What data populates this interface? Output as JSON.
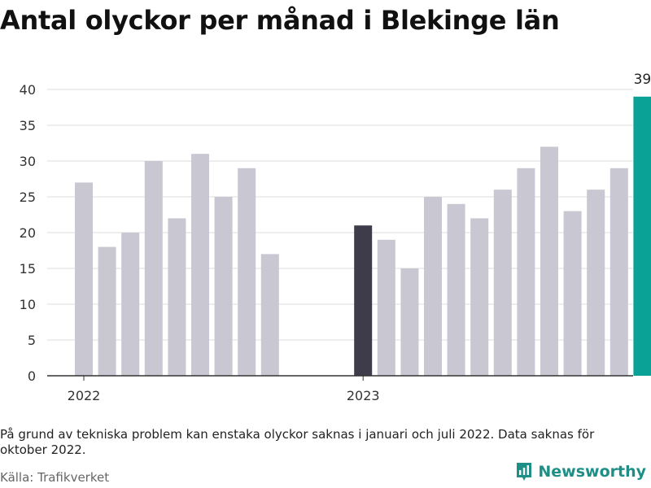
{
  "title": "Antal olyckor per månad i Blekinge län",
  "note": "På grund av tekniska problem kan enstaka olyckor saknas i januari och juli 2022. Data saknas för oktober 2022.",
  "source": "Källa: Trafikverket",
  "brand": {
    "name": "Newsworthy",
    "color": "#1d8f86"
  },
  "colors": {
    "default": "#c8c7d2",
    "reference": "#3e3c4b",
    "highlight": "#0aa197",
    "grid": "#dddddd",
    "axis": "#333333"
  },
  "chart_data": {
    "type": "bar",
    "ylim": [
      0,
      40
    ],
    "yticks": [
      0,
      5,
      10,
      15,
      20,
      25,
      30,
      35,
      40
    ],
    "xtick_labels": [
      {
        "label": "2022",
        "at": "2022-01"
      },
      {
        "label": "2023",
        "at": "2023-01"
      }
    ],
    "categories": [
      "2022-01",
      "2022-02",
      "2022-03",
      "2022-04",
      "2022-05",
      "2022-06",
      "2022-07",
      "2022-08",
      "2022-09",
      "2022-10",
      "2022-11",
      "2022-12",
      "2023-01",
      "2023-02",
      "2023-03",
      "2023-04",
      "2023-05",
      "2023-06",
      "2023-07",
      "2023-08",
      "2023-09",
      "2023-10",
      "2023-11",
      "2023-12",
      "2024-01"
    ],
    "values": [
      27,
      18,
      20,
      30,
      22,
      31,
      25,
      29,
      17,
      null,
      null,
      null,
      21,
      19,
      15,
      25,
      24,
      22,
      26,
      29,
      32,
      23,
      26,
      29,
      39
    ],
    "reference_category": "2023-01",
    "highlight_category": "2024-01",
    "data_labels": [
      {
        "category": "2024-01",
        "text": "39"
      }
    ],
    "grid": true,
    "legend": "none"
  }
}
